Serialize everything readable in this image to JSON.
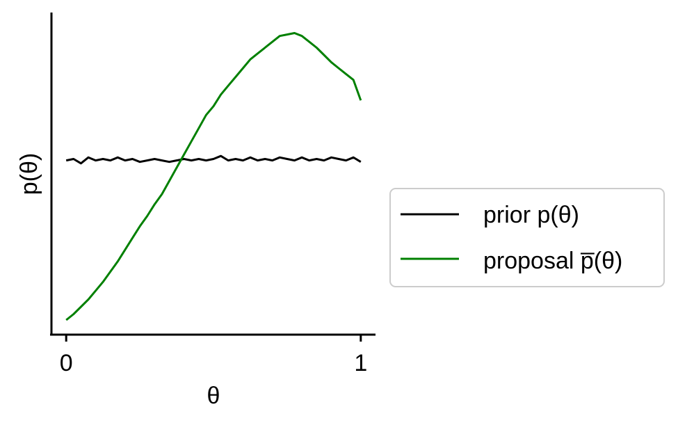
{
  "chart_data": {
    "type": "line",
    "xlabel": "θ",
    "ylabel": "p(θ)",
    "xlim": [
      -0.05,
      1.05
    ],
    "ylim": [
      -0.05,
      1.05
    ],
    "x_ticks": [
      {
        "value": 0,
        "label": "0"
      },
      {
        "value": 1,
        "label": "1"
      }
    ],
    "y_ticks": [],
    "grid": false,
    "legend_position": "right",
    "series": [
      {
        "name": "prior p(θ)",
        "color": "#000000",
        "x": [
          0,
          0.025,
          0.05,
          0.075,
          0.1,
          0.125,
          0.15,
          0.175,
          0.2,
          0.225,
          0.25,
          0.275,
          0.3,
          0.325,
          0.35,
          0.375,
          0.4,
          0.425,
          0.45,
          0.475,
          0.5,
          0.525,
          0.55,
          0.575,
          0.6,
          0.625,
          0.65,
          0.675,
          0.7,
          0.725,
          0.75,
          0.775,
          0.8,
          0.825,
          0.85,
          0.875,
          0.9,
          0.925,
          0.95,
          0.975,
          1.0
        ],
        "y": [
          0.545,
          0.55,
          0.535,
          0.555,
          0.545,
          0.55,
          0.545,
          0.555,
          0.545,
          0.55,
          0.54,
          0.545,
          0.55,
          0.545,
          0.54,
          0.545,
          0.55,
          0.545,
          0.55,
          0.545,
          0.55,
          0.56,
          0.545,
          0.55,
          0.545,
          0.555,
          0.545,
          0.55,
          0.545,
          0.555,
          0.55,
          0.545,
          0.555,
          0.545,
          0.55,
          0.545,
          0.555,
          0.55,
          0.545,
          0.555,
          0.54
        ]
      },
      {
        "name": "proposal p̅(θ)",
        "color": "#008000",
        "x": [
          0,
          0.025,
          0.05,
          0.075,
          0.1,
          0.125,
          0.15,
          0.175,
          0.2,
          0.225,
          0.25,
          0.275,
          0.3,
          0.325,
          0.35,
          0.375,
          0.4,
          0.425,
          0.45,
          0.475,
          0.5,
          0.525,
          0.55,
          0.575,
          0.6,
          0.625,
          0.65,
          0.675,
          0.7,
          0.725,
          0.75,
          0.775,
          0.8,
          0.825,
          0.85,
          0.875,
          0.9,
          0.925,
          0.95,
          0.975,
          1.0
        ],
        "y": [
          0.0,
          0.02,
          0.045,
          0.07,
          0.1,
          0.13,
          0.165,
          0.2,
          0.24,
          0.28,
          0.32,
          0.355,
          0.395,
          0.43,
          0.475,
          0.52,
          0.565,
          0.61,
          0.655,
          0.7,
          0.73,
          0.77,
          0.8,
          0.83,
          0.86,
          0.89,
          0.91,
          0.93,
          0.95,
          0.97,
          0.975,
          0.98,
          0.97,
          0.95,
          0.93,
          0.905,
          0.88,
          0.86,
          0.84,
          0.82,
          0.75
        ]
      }
    ]
  }
}
